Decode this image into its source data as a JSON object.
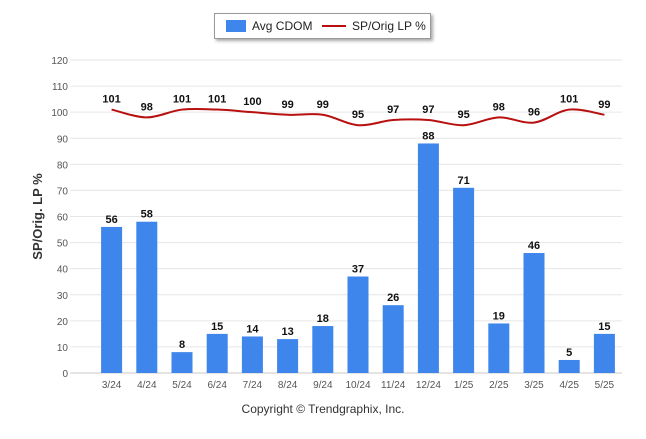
{
  "chart_data": {
    "type": "bar",
    "categories": [
      "3/24",
      "4/24",
      "5/24",
      "6/24",
      "7/24",
      "8/24",
      "9/24",
      "10/24",
      "11/24",
      "12/24",
      "1/25",
      "2/25",
      "3/25",
      "4/25",
      "5/25"
    ],
    "series": [
      {
        "name": "Avg CDOM",
        "type": "bar",
        "color": "#3f86ec",
        "values": [
          56,
          58,
          8,
          15,
          14,
          13,
          18,
          37,
          26,
          88,
          71,
          19,
          46,
          5,
          15
        ]
      },
      {
        "name": "SP/Orig LP %",
        "type": "line",
        "color": "#b80f0f",
        "values": [
          101,
          98,
          101,
          101,
          100,
          99,
          99,
          95,
          97,
          97,
          95,
          98,
          96,
          101,
          99
        ]
      }
    ],
    "title": "",
    "xlabel": "",
    "ylabel": "SP/Orig. LP %",
    "ylim": [
      0,
      120
    ],
    "yticks": [
      0,
      10,
      20,
      30,
      40,
      50,
      60,
      70,
      80,
      90,
      100,
      110,
      120
    ],
    "grid": true,
    "legend": "top-center"
  },
  "footer": {
    "credit": "Copyright © Trendgraphix, Inc."
  }
}
